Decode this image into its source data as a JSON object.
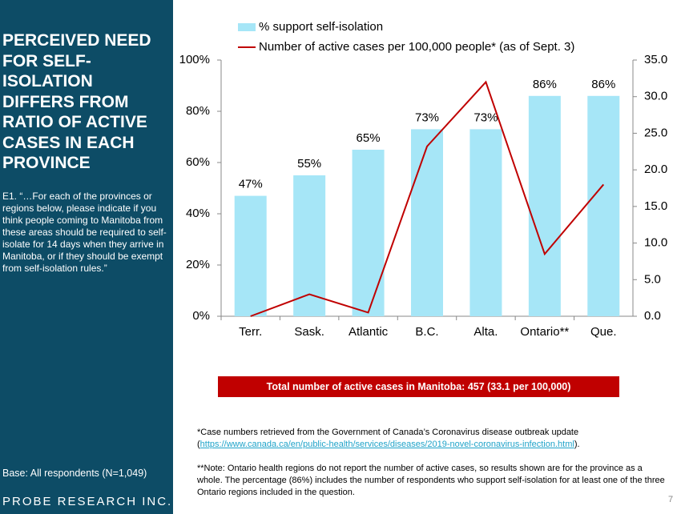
{
  "sidebar": {
    "title": "Perceived need for self-isolation differs from ratio of active cases in each province",
    "question": "E1. “…For each of the provinces or regions below, please indicate if you think people coming to Manitoba from these areas should be required to self-isolate for 14 days when they arrive in Manitoba, or if they should be exempt from self-isolation rules.”",
    "base": "Base: All respondents (N=1,049)",
    "logo": "PROBE RESEARCH INC."
  },
  "chart_data": {
    "type": "bar",
    "categories": [
      "Terr.",
      "Sask.",
      "Atlantic",
      "B.C.",
      "Alta.",
      "Ontario**",
      "Que."
    ],
    "series": [
      {
        "name": "% support self-isolation",
        "color": "#a6e6f7",
        "values": [
          47,
          55,
          65,
          73,
          73,
          86,
          86
        ],
        "value_labels": [
          "47%",
          "55%",
          "65%",
          "73%",
          "73%",
          "86%",
          "86%"
        ]
      },
      {
        "name": "Number of active cases per 100,000 people* (as of Sept. 3)",
        "color": "#c00000",
        "type": "line",
        "axis": "y2",
        "values": [
          0.0,
          3.0,
          0.5,
          23.2,
          32.0,
          8.5,
          18.0
        ]
      }
    ],
    "ylim": [
      0,
      100
    ],
    "yticks": [
      {
        "value": 0,
        "label": "0%"
      },
      {
        "value": 20,
        "label": "20%"
      },
      {
        "value": 40,
        "label": "40%"
      },
      {
        "value": 60,
        "label": "60%"
      },
      {
        "value": 80,
        "label": "80%"
      },
      {
        "value": 100,
        "label": "100%"
      }
    ],
    "y2lim": [
      0,
      35
    ],
    "y2ticks": [
      {
        "value": 0,
        "label": "0.0"
      },
      {
        "value": 5,
        "label": "5.0"
      },
      {
        "value": 10,
        "label": "10.0"
      },
      {
        "value": 15,
        "label": "15.0"
      },
      {
        "value": 20,
        "label": "20.0"
      },
      {
        "value": 25,
        "label": "25.0"
      },
      {
        "value": 30,
        "label": "30.0"
      },
      {
        "value": 35,
        "label": "35.0"
      }
    ],
    "grid": false
  },
  "callout": "Total number of active cases in Manitoba: 457 (33.1 per 100,000)",
  "footnotes": [
    {
      "text": "*Case numbers retrieved from the Government of Canada’s Coronavirus disease outbreak update (",
      "link": "https://www.canada.ca/en/public-health/services/diseases/2019-novel-coronavirus-infection.html",
      "after": ")."
    },
    {
      "text": "**Note: Ontario health regions do not report the number of active cases, so results shown are for the province as a whole. The percentage (86%) includes the number of respondents who support self-isolation for at least one of the three Ontario regions included in the question."
    }
  ],
  "page_number": "7"
}
